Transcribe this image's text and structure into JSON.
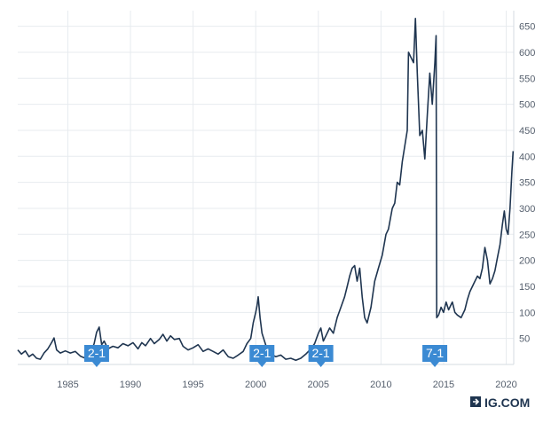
{
  "chart_data": {
    "type": "line",
    "title": "",
    "xlabel": "",
    "ylabel": "",
    "xlim": [
      1981.0,
      2020.6
    ],
    "ylim": [
      0,
      680
    ],
    "x_ticks": [
      1985,
      1990,
      1995,
      2000,
      2005,
      2010,
      2015,
      2020
    ],
    "y_ticks": [
      50,
      100,
      150,
      200,
      250,
      300,
      350,
      400,
      450,
      500,
      550,
      600,
      650
    ],
    "grid": true,
    "line_color": "#1f3550",
    "series": [
      {
        "values": [
          [
            1981.0,
            28
          ],
          [
            1981.3,
            20
          ],
          [
            1981.6,
            26
          ],
          [
            1981.9,
            15
          ],
          [
            1982.2,
            20
          ],
          [
            1982.5,
            12
          ],
          [
            1982.8,
            10
          ],
          [
            1983.1,
            22
          ],
          [
            1983.4,
            30
          ],
          [
            1983.7,
            42
          ],
          [
            1983.9,
            51
          ],
          [
            1984.1,
            28
          ],
          [
            1984.4,
            22
          ],
          [
            1984.8,
            26
          ],
          [
            1985.2,
            22
          ],
          [
            1985.6,
            25
          ],
          [
            1986.0,
            16
          ],
          [
            1986.4,
            12
          ],
          [
            1986.8,
            22
          ],
          [
            1987.1,
            40
          ],
          [
            1987.3,
            62
          ],
          [
            1987.5,
            72
          ],
          [
            1987.7,
            38
          ],
          [
            1987.9,
            45
          ],
          [
            1988.2,
            30
          ],
          [
            1988.6,
            35
          ],
          [
            1989.0,
            32
          ],
          [
            1989.4,
            40
          ],
          [
            1989.8,
            36
          ],
          [
            1990.2,
            42
          ],
          [
            1990.6,
            30
          ],
          [
            1990.9,
            42
          ],
          [
            1991.2,
            36
          ],
          [
            1991.6,
            50
          ],
          [
            1991.9,
            40
          ],
          [
            1992.3,
            48
          ],
          [
            1992.6,
            58
          ],
          [
            1992.9,
            45
          ],
          [
            1993.2,
            55
          ],
          [
            1993.5,
            48
          ],
          [
            1993.9,
            50
          ],
          [
            1994.2,
            35
          ],
          [
            1994.6,
            28
          ],
          [
            1995.0,
            32
          ],
          [
            1995.4,
            38
          ],
          [
            1995.8,
            25
          ],
          [
            1996.2,
            30
          ],
          [
            1996.6,
            25
          ],
          [
            1997.0,
            20
          ],
          [
            1997.4,
            28
          ],
          [
            1997.8,
            15
          ],
          [
            1998.2,
            12
          ],
          [
            1998.6,
            18
          ],
          [
            1999.0,
            25
          ],
          [
            1999.3,
            40
          ],
          [
            1999.6,
            50
          ],
          [
            1999.8,
            80
          ],
          [
            2000.0,
            100
          ],
          [
            2000.1,
            112
          ],
          [
            2000.2,
            130
          ],
          [
            2000.35,
            90
          ],
          [
            2000.5,
            60
          ],
          [
            2000.7,
            45
          ],
          [
            2000.9,
            30
          ],
          [
            2001.2,
            20
          ],
          [
            2001.6,
            15
          ],
          [
            2002.0,
            18
          ],
          [
            2002.4,
            10
          ],
          [
            2002.8,
            12
          ],
          [
            2003.2,
            8
          ],
          [
            2003.6,
            12
          ],
          [
            2004.0,
            20
          ],
          [
            2004.4,
            30
          ],
          [
            2004.7,
            40
          ],
          [
            2005.0,
            60
          ],
          [
            2005.2,
            70
          ],
          [
            2005.4,
            45
          ],
          [
            2005.6,
            55
          ],
          [
            2005.9,
            70
          ],
          [
            2006.2,
            60
          ],
          [
            2006.5,
            90
          ],
          [
            2006.8,
            110
          ],
          [
            2007.1,
            130
          ],
          [
            2007.3,
            150
          ],
          [
            2007.5,
            170
          ],
          [
            2007.7,
            185
          ],
          [
            2007.9,
            190
          ],
          [
            2008.1,
            160
          ],
          [
            2008.3,
            185
          ],
          [
            2008.5,
            130
          ],
          [
            2008.7,
            90
          ],
          [
            2008.9,
            80
          ],
          [
            2009.2,
            110
          ],
          [
            2009.5,
            160
          ],
          [
            2009.8,
            185
          ],
          [
            2010.1,
            210
          ],
          [
            2010.4,
            250
          ],
          [
            2010.6,
            260
          ],
          [
            2010.9,
            300
          ],
          [
            2011.1,
            310
          ],
          [
            2011.3,
            350
          ],
          [
            2011.5,
            345
          ],
          [
            2011.7,
            390
          ],
          [
            2011.9,
            420
          ],
          [
            2012.1,
            450
          ],
          [
            2012.2,
            600
          ],
          [
            2012.4,
            590
          ],
          [
            2012.6,
            580
          ],
          [
            2012.75,
            665
          ],
          [
            2012.9,
            560
          ],
          [
            2013.1,
            440
          ],
          [
            2013.3,
            450
          ],
          [
            2013.5,
            395
          ],
          [
            2013.7,
            480
          ],
          [
            2013.9,
            560
          ],
          [
            2014.1,
            500
          ],
          [
            2014.3,
            580
          ],
          [
            2014.4,
            632
          ],
          [
            2014.45,
            90
          ],
          [
            2014.6,
            95
          ],
          [
            2014.8,
            110
          ],
          [
            2015.0,
            100
          ],
          [
            2015.2,
            120
          ],
          [
            2015.4,
            105
          ],
          [
            2015.7,
            120
          ],
          [
            2015.9,
            100
          ],
          [
            2016.1,
            95
          ],
          [
            2016.4,
            90
          ],
          [
            2016.7,
            105
          ],
          [
            2016.9,
            125
          ],
          [
            2017.1,
            140
          ],
          [
            2017.4,
            155
          ],
          [
            2017.7,
            170
          ],
          [
            2017.9,
            165
          ],
          [
            2018.1,
            185
          ],
          [
            2018.3,
            225
          ],
          [
            2018.5,
            200
          ],
          [
            2018.7,
            155
          ],
          [
            2018.9,
            165
          ],
          [
            2019.1,
            180
          ],
          [
            2019.3,
            205
          ],
          [
            2019.5,
            230
          ],
          [
            2019.7,
            270
          ],
          [
            2019.85,
            295
          ],
          [
            2020.0,
            260
          ],
          [
            2020.15,
            250
          ],
          [
            2020.3,
            300
          ],
          [
            2020.45,
            370
          ],
          [
            2020.55,
            410
          ]
        ]
      }
    ],
    "annotations": [
      {
        "x": 1987.3,
        "label": "2-1"
      },
      {
        "x": 2000.5,
        "label": "2-1"
      },
      {
        "x": 2005.2,
        "label": "2-1"
      },
      {
        "x": 2014.3,
        "label": "7-1"
      }
    ]
  },
  "logo": {
    "text": "IG.COM"
  }
}
